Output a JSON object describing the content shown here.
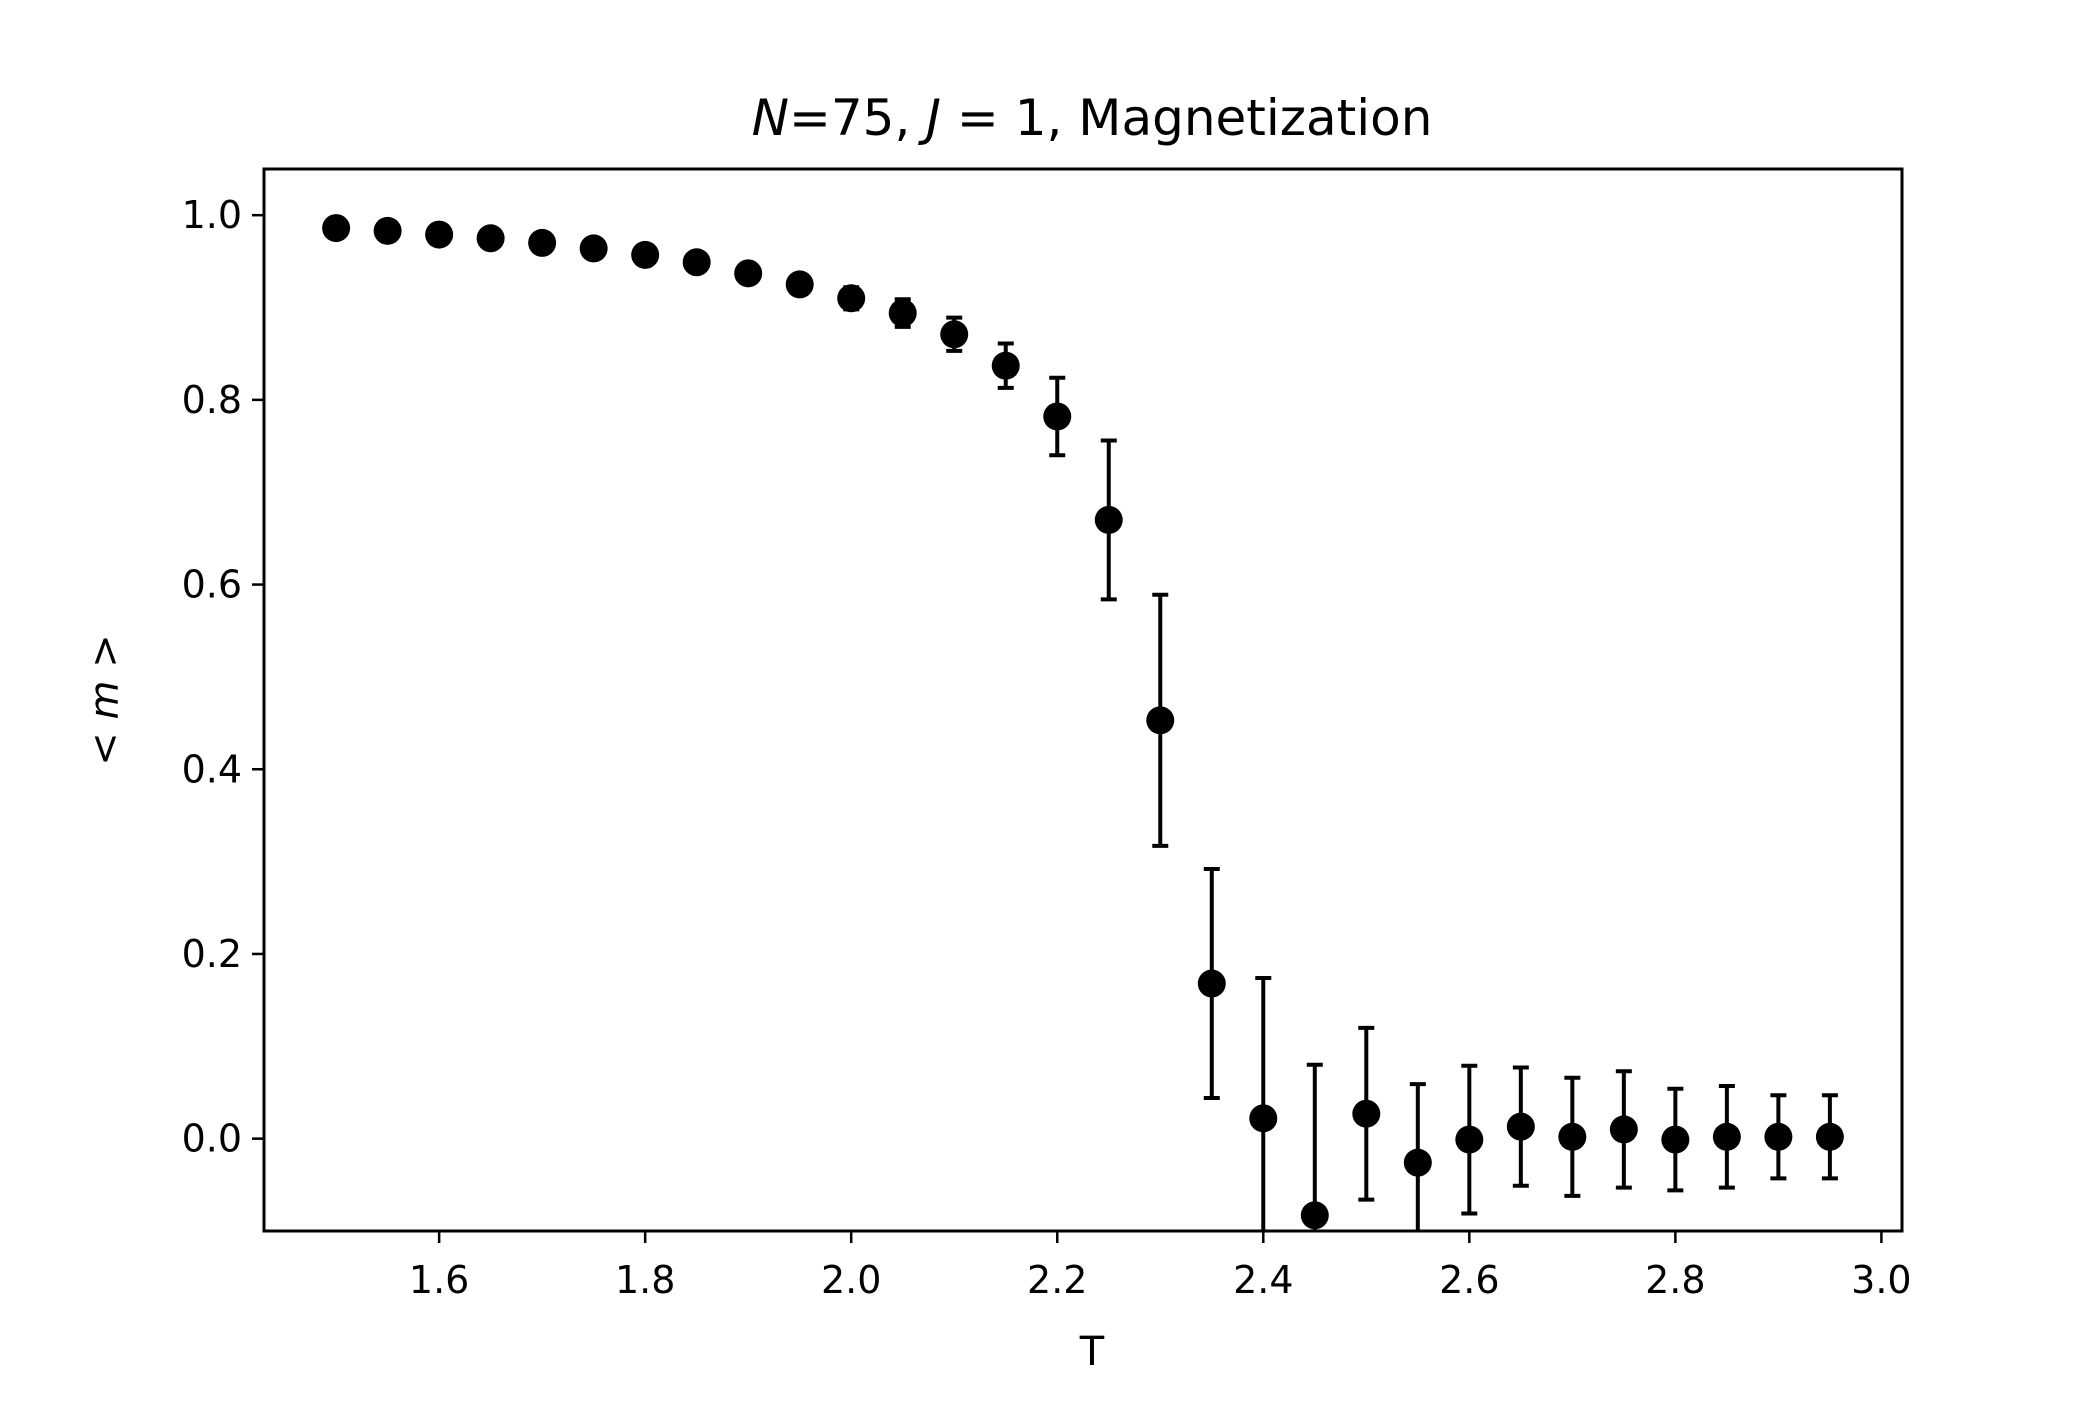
{
  "chart_data": {
    "type": "scatter",
    "title": {
      "n_sym": "N",
      "n_rest": "=75, ",
      "j_sym": "J",
      "j_rest": " = 1, Magnetization"
    },
    "xlabel": "T",
    "ylabel": {
      "lt": "< ",
      "m": "m",
      "gt": " >"
    },
    "xlim": [
      1.43,
      3.02
    ],
    "ylim": [
      -0.1,
      1.05
    ],
    "xticks": [
      "1.6",
      "1.8",
      "2.0",
      "2.2",
      "2.4",
      "2.6",
      "2.8",
      "3.0"
    ],
    "yticks": [
      "0.0",
      "0.2",
      "0.4",
      "0.6",
      "0.8",
      "1.0"
    ],
    "grid": false,
    "marker_color": "#000000",
    "series": [
      {
        "name": "magnetization",
        "x": [
          1.5,
          1.55,
          1.6,
          1.65,
          1.7,
          1.75,
          1.8,
          1.85,
          1.9,
          1.95,
          2.0,
          2.05,
          2.1,
          2.15,
          2.2,
          2.25,
          2.3,
          2.35,
          2.4,
          2.45,
          2.5,
          2.55,
          2.6,
          2.65,
          2.7,
          2.75,
          2.8,
          2.85,
          2.9,
          2.95
        ],
        "y": [
          0.986,
          0.983,
          0.979,
          0.975,
          0.97,
          0.964,
          0.957,
          0.949,
          0.937,
          0.925,
          0.91,
          0.894,
          0.871,
          0.837,
          0.782,
          0.67,
          0.453,
          0.168,
          0.022,
          -0.083,
          0.027,
          -0.026,
          -0.001,
          0.013,
          0.002,
          0.01,
          -0.001,
          0.002,
          0.002,
          0.002
        ],
        "yerr": [
          0.003,
          0.003,
          0.004,
          0.004,
          0.005,
          0.005,
          0.006,
          0.007,
          0.008,
          0.009,
          0.012,
          0.015,
          0.018,
          0.024,
          0.042,
          0.086,
          0.136,
          0.124,
          0.152,
          0.163,
          0.093,
          0.085,
          0.08,
          0.064,
          0.064,
          0.063,
          0.055,
          0.055,
          0.045,
          0.045
        ]
      }
    ]
  }
}
